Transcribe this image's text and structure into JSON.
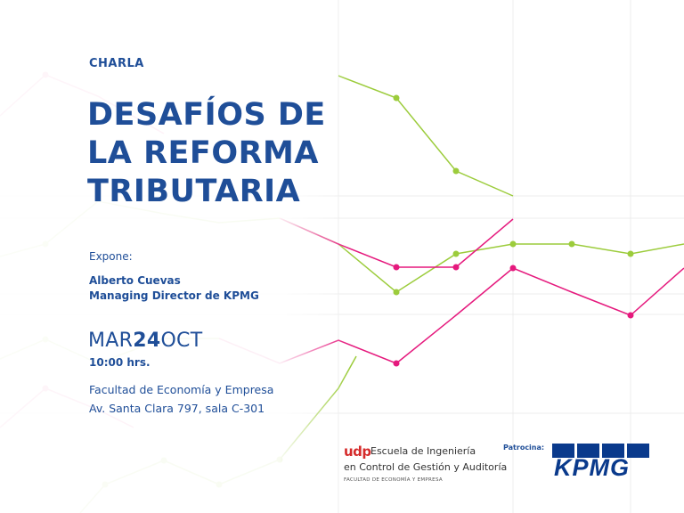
{
  "event": {
    "label": "CHARLA",
    "title_lines": [
      "DESAFÍOS DE",
      "LA REFORMA",
      "TRIBUTARIA"
    ],
    "expone_label": "Expone:",
    "speaker_name": "Alberto Cuevas",
    "speaker_role": "Managing Director de KPMG",
    "date_month1": "MAR",
    "date_day": "24",
    "date_month2": "OCT",
    "time": "10:00 hrs.",
    "venue_line1": "Facultad de Economía y Empresa",
    "venue_line2": "Av. Santa Clara 797, sala C-301"
  },
  "organizer": {
    "mark": "udp",
    "line1": "Escuela de Ingeniería",
    "line2": "en Control de Gestión y Auditoría",
    "line3": "FACULTAD DE ECONOMÍA Y EMPRESA"
  },
  "sponsor": {
    "label": "Patrocina:",
    "name": "KPMG"
  },
  "colors": {
    "primary_blue": "#1f4e98",
    "magenta": "#e5197d",
    "green": "#9ccc3c",
    "grid": "#e9e9e9",
    "kpmg_blue": "#0a3a8c",
    "udp_red": "#d52b2b"
  },
  "icons": {
    "background": "line-chart-graphic"
  }
}
